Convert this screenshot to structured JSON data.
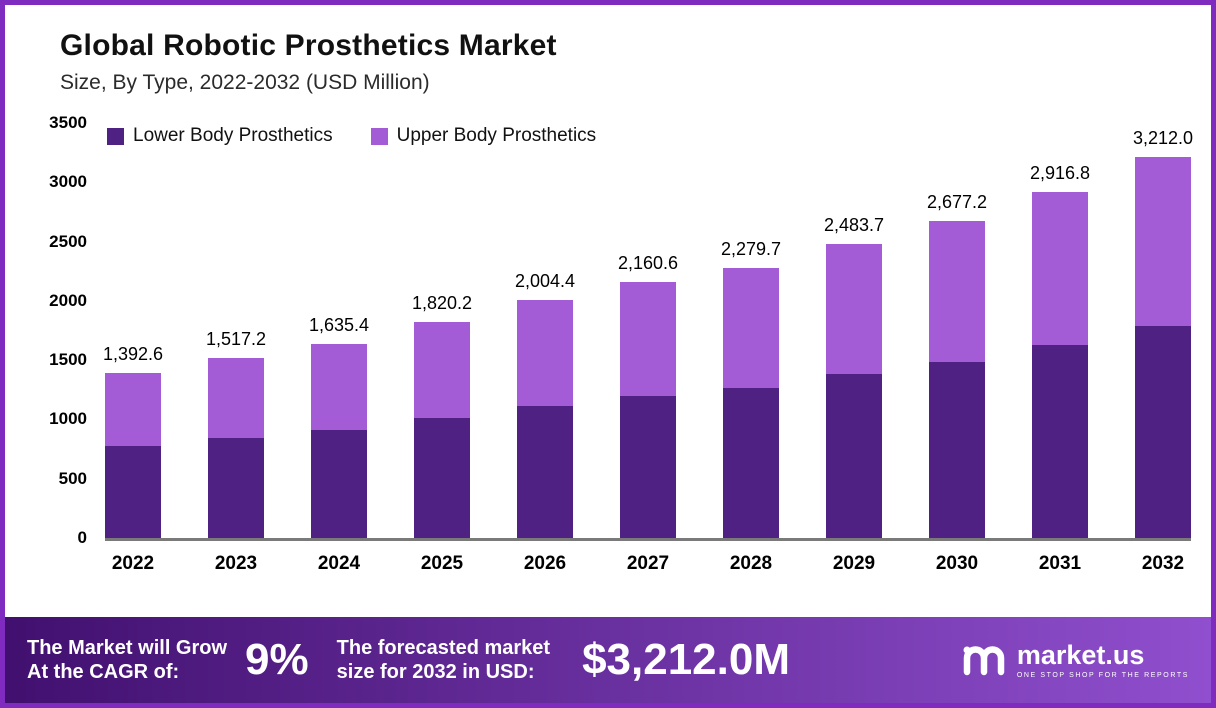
{
  "title": "Global Robotic Prosthetics Market",
  "subtitle": "Size, By Type, 2022-2032 (USD Million)",
  "colors": {
    "lower_body": "#4e2183",
    "upper_body": "#a35bd6",
    "frame_border": "#7f2bbf",
    "banner_gradient_from": "#41106f",
    "banner_gradient_to": "#904fce",
    "axis_line": "#7a7a7a"
  },
  "chart_data": {
    "type": "bar",
    "stacked": true,
    "title": "Global Robotic Prosthetics Market Size, By Type, 2022-2032 (USD Million)",
    "categories": [
      "2022",
      "2023",
      "2024",
      "2025",
      "2026",
      "2027",
      "2028",
      "2029",
      "2030",
      "2031",
      "2032"
    ],
    "series": [
      {
        "name": "Lower Body Prosthetics",
        "color": "#4e2183",
        "values": [
          775,
          845,
          910,
          1010,
          1110,
          1200,
          1265,
          1385,
          1485,
          1625,
          1790
        ]
      },
      {
        "name": "Upper Body Prosthetics",
        "color": "#a35bd6",
        "values": [
          617.6,
          672.2,
          725.4,
          810.2,
          894.4,
          960.6,
          1014.7,
          1098.7,
          1192.2,
          1291.8,
          1422.0
        ]
      }
    ],
    "totals": [
      1392.6,
      1517.2,
      1635.4,
      1820.2,
      2004.4,
      2160.6,
      2279.7,
      2483.7,
      2677.2,
      2916.8,
      3212.0
    ],
    "total_labels": [
      "1,392.6",
      "1,517.2",
      "1,635.4",
      "1,820.2",
      "2,004.4",
      "2,160.6",
      "2,279.7",
      "2,483.7",
      "2,677.2",
      "2,916.8",
      "3,212.0"
    ],
    "ylim": [
      0,
      3500
    ],
    "yticks": [
      0,
      500,
      1000,
      1500,
      2000,
      2500,
      3000,
      3500
    ],
    "grid": false,
    "legend_position": "top-left"
  },
  "banner": {
    "cagr_label_line1": "The Market will Grow",
    "cagr_label_line2": "At the CAGR of:",
    "cagr_value": "9%",
    "forecast_label_line1": "The forecasted market",
    "forecast_label_line2": "size for 2032 in USD:",
    "forecast_value": "$3,212.0M",
    "brand_name": "market.us",
    "brand_tagline": "ONE STOP SHOP FOR THE REPORTS"
  }
}
